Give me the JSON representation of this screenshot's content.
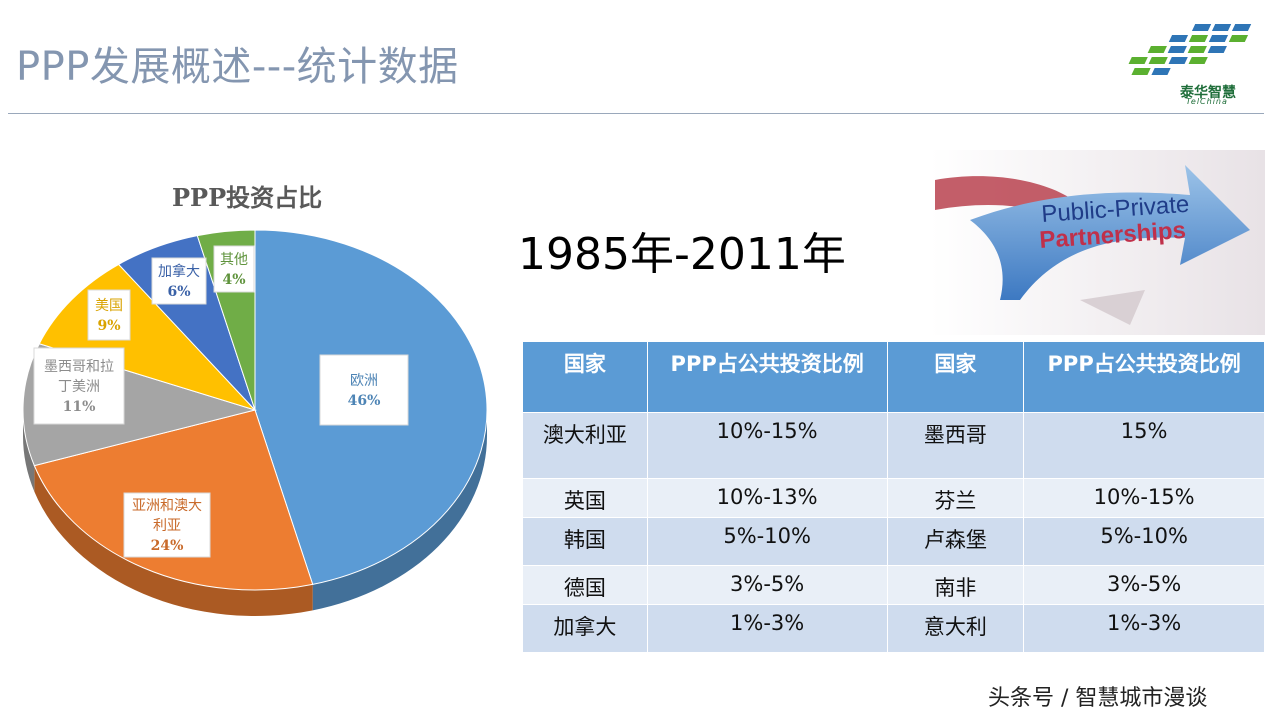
{
  "slide": {
    "title": "PPP发展概述---统计数据",
    "period": "1985年-2011年",
    "footer": "头条号 / 智慧城市漫谈"
  },
  "logo": {
    "name": "泰华智慧",
    "sub": "TelChina"
  },
  "banner": {
    "line1": "Public-Private",
    "line2": "Partnerships"
  },
  "chart_data": {
    "type": "pie",
    "title": "PPP投资占比",
    "legend": "none",
    "slices": [
      {
        "label": "欧洲",
        "value": 46,
        "pct": "46%",
        "color": "#5b9bd5"
      },
      {
        "label": "亚洲和澳大利亚",
        "value": 24,
        "pct": "24%",
        "color": "#ed7d31"
      },
      {
        "label": "墨西哥和拉丁美洲",
        "value": 11,
        "pct": "11%",
        "color": "#a5a5a5"
      },
      {
        "label": "美国",
        "value": 9,
        "pct": "9%",
        "color": "#ffc000"
      },
      {
        "label": "加拿大",
        "value": 6,
        "pct": "6%",
        "color": "#4472c4"
      },
      {
        "label": "其他",
        "value": 4,
        "pct": "4%",
        "color": "#70ad47"
      }
    ]
  },
  "table": {
    "headers": [
      "国家",
      "PPP占公共投资比例",
      "国家",
      "PPP占公共投资比例"
    ],
    "rows": [
      [
        "澳大利亚",
        "10%-15%",
        "墨西哥",
        "15%"
      ],
      [
        "英国",
        "10%-13%",
        "芬兰",
        "10%-15%"
      ],
      [
        "韩国",
        "5%-10%",
        "卢森堡",
        "5%-10%"
      ],
      [
        "德国",
        "3%-5%",
        "南非",
        "3%-5%"
      ],
      [
        "加拿大",
        "1%-3%",
        "意大利",
        "1%-3%"
      ]
    ]
  }
}
